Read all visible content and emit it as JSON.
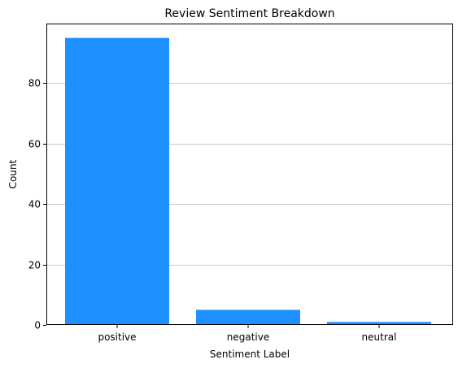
{
  "chart_data": {
    "type": "bar",
    "title": "Review Sentiment Breakdown",
    "xlabel": "Sentiment Label",
    "ylabel": "Count",
    "categories": [
      "positive",
      "negative",
      "neutral"
    ],
    "values": [
      95,
      5,
      1
    ],
    "ylim": [
      0,
      99.75
    ],
    "yticks": [
      0,
      20,
      40,
      60,
      80
    ],
    "grid": "horizontal",
    "bar_color": "#1e90ff",
    "grid_color": "#c8c8c8"
  }
}
